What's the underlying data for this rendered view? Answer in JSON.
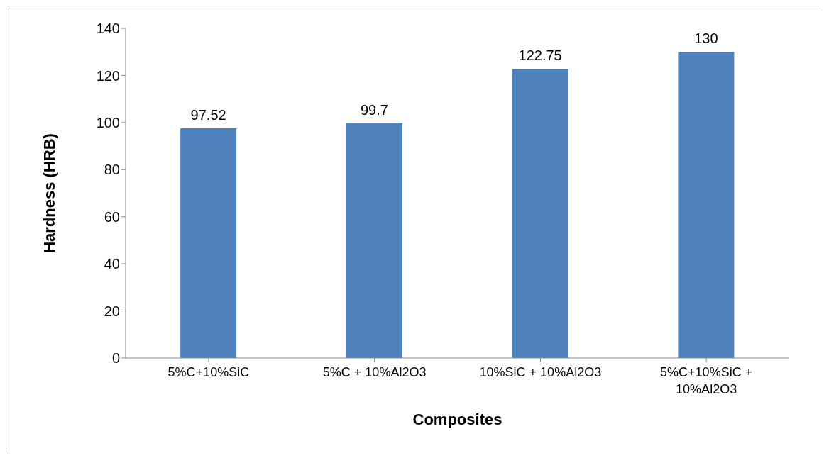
{
  "chart_data": {
    "type": "bar",
    "xlabel": "Composites",
    "ylabel": "Hardness (HRB)",
    "categories": [
      "5%C+10%SiC",
      "5%C + 10%Al2O3",
      "10%SiC + 10%Al2O3",
      "5%C+10%SiC + 10%Al2O3"
    ],
    "values": [
      97.52,
      99.7,
      122.75,
      130
    ],
    "color": "#4f81bd",
    "ylim": [
      0,
      140
    ],
    "yticks": [
      0,
      20,
      40,
      60,
      80,
      100,
      120,
      140
    ],
    "grid": false,
    "legend": false,
    "data_labels": true
  }
}
